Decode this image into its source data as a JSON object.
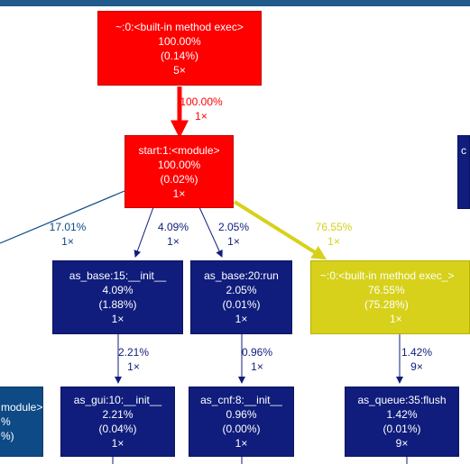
{
  "nodes": {
    "builtin_exec_top": {
      "name": "~:0:<built-in method exec>",
      "total": "100.00%",
      "self": "(0.14%)",
      "calls": "5×"
    },
    "start_module": {
      "name": "start:1:<module>",
      "total": "100.00%",
      "self": "(0.02%)",
      "calls": "1×"
    },
    "as_base_init": {
      "name": "as_base:15:__init__",
      "total": "4.09%",
      "self": "(1.88%)",
      "calls": "1×"
    },
    "as_base_run": {
      "name": "as_base:20:run",
      "total": "2.05%",
      "self": "(0.01%)",
      "calls": "1×"
    },
    "builtin_exec_right": {
      "name": "~:0:<built-in method exec_>",
      "total": "76.55%",
      "self": "(75.28%)",
      "calls": "1×"
    },
    "as_gui_init": {
      "name": "as_gui:10:__init__",
      "total": "2.21%",
      "self": "(0.04%)",
      "calls": "1×"
    },
    "as_cnf_init": {
      "name": "as_cnf:8:__init__",
      "total": "0.96%",
      "self": "(0.00%)",
      "calls": "1×"
    },
    "as_queue_flush": {
      "name": "as_queue:35:flush",
      "total": "1.42%",
      "self": "(0.01%)",
      "calls": "9×"
    },
    "left_module_partial": {
      "name": "module>",
      "total": "%",
      "self": "%)",
      "calls": ""
    },
    "right_partial": {
      "name": "c",
      "total": "",
      "self": "",
      "calls": ""
    }
  },
  "edges": {
    "exec_to_start": {
      "pct": "100.00%",
      "calls": "1×",
      "color": "#ff0000"
    },
    "start_to_left": {
      "pct": "17.01%",
      "calls": "1×",
      "color": "#0d4a86"
    },
    "start_to_base_init": {
      "pct": "4.09%",
      "calls": "1×",
      "color": "#101d7c"
    },
    "start_to_base_run": {
      "pct": "2.05%",
      "calls": "1×",
      "color": "#101d7c"
    },
    "start_to_exec_right": {
      "pct": "76.55%",
      "calls": "1×",
      "color": "#d7d11b"
    },
    "base_init_to_gui": {
      "pct": "2.21%",
      "calls": "1×",
      "color": "#101d7c"
    },
    "base_run_to_cnf": {
      "pct": "0.96%",
      "calls": "1×",
      "color": "#101d7c"
    },
    "exec_right_to_queue": {
      "pct": "1.42%",
      "calls": "9×",
      "color": "#101d7c"
    }
  },
  "colors": {
    "hot": "#ff0000",
    "warm": "#d7d11b",
    "cold": "#101d7c",
    "cool": "#0d4a86"
  }
}
